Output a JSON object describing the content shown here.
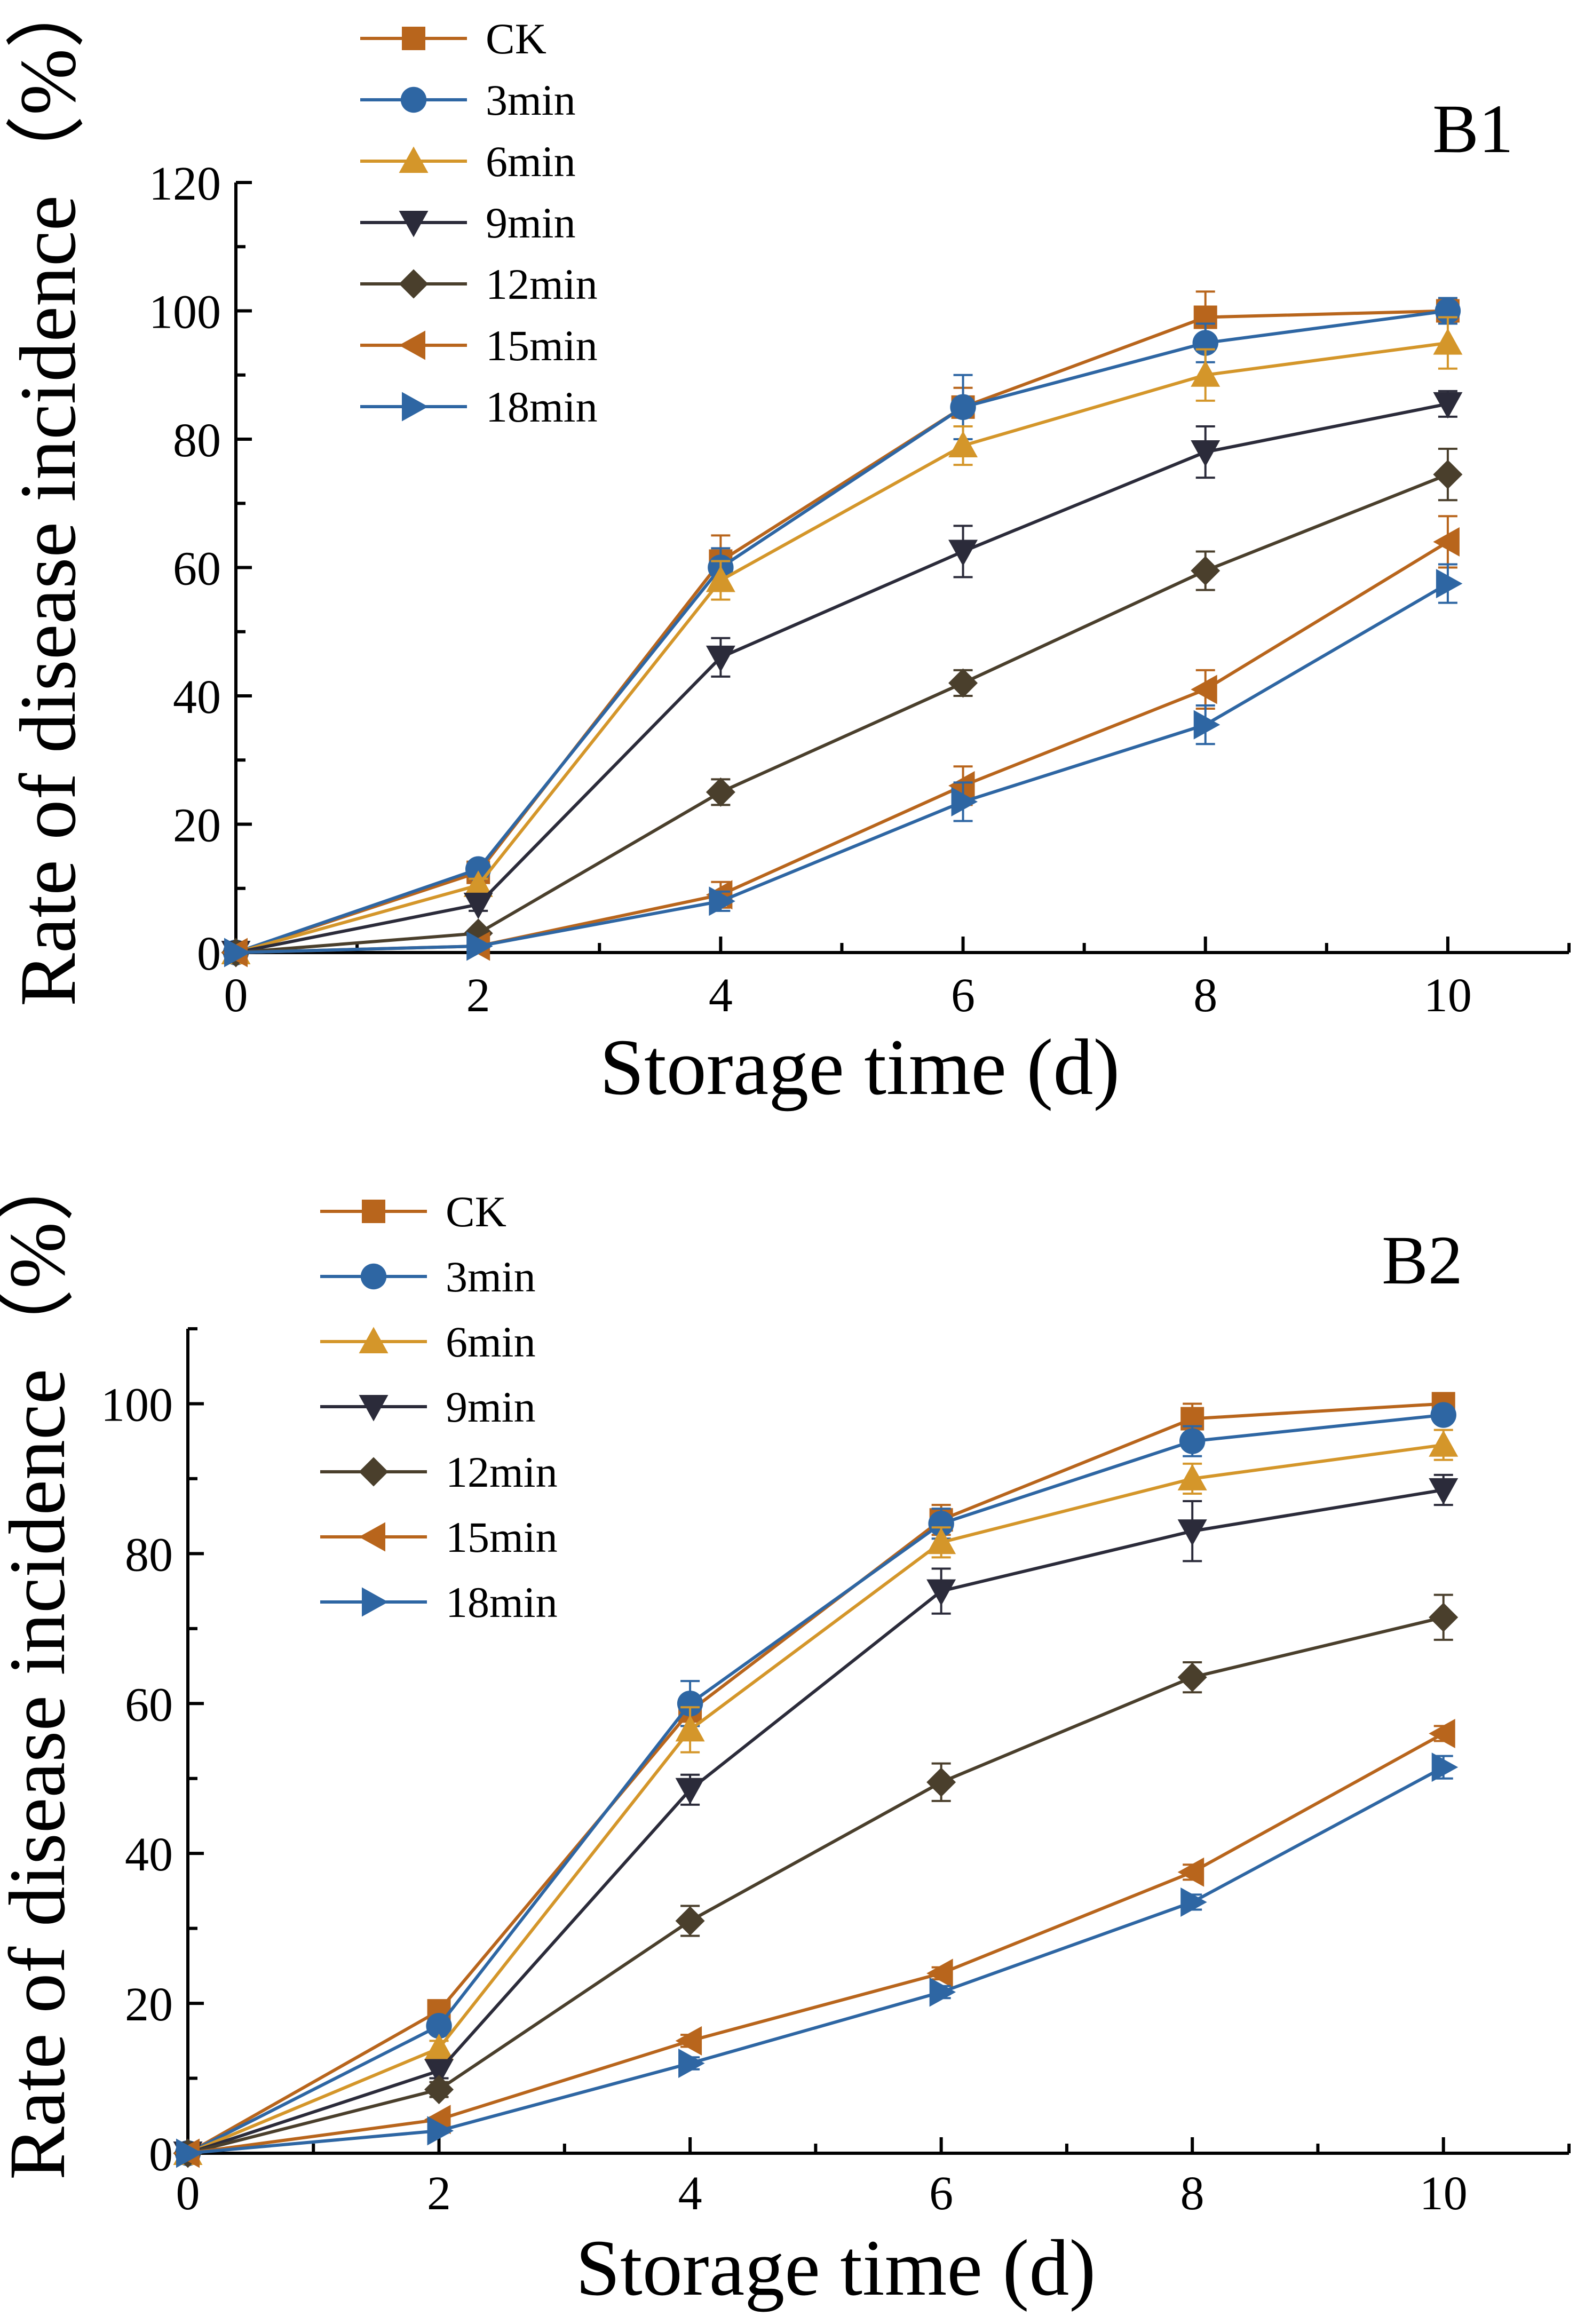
{
  "colors": {
    "CK": "#B8651C",
    "3min": "#2E66A3",
    "6min": "#D4962A",
    "9min": "#2B2B3A",
    "12min": "#4A3F2C",
    "15min": "#B8651C",
    "18min": "#2E66A3"
  },
  "chart_data": [
    {
      "type": "line",
      "panel_label": "B1",
      "xlabel": "Storage time (d)",
      "ylabel": "Rate of disease incidence",
      "ylabel_unit": "（%）",
      "x": [
        0,
        2,
        4,
        6,
        8,
        10
      ],
      "xlim": [
        0,
        11
      ],
      "ylim": [
        0,
        120
      ],
      "xticks": [
        0,
        2,
        4,
        6,
        8,
        10
      ],
      "yticks": [
        0,
        20,
        40,
        60,
        80,
        100,
        120
      ],
      "xtick_labels": [
        "0",
        "2",
        "4",
        "6",
        "8",
        "10"
      ],
      "ytick_labels": [
        "0",
        "20",
        "40",
        "60",
        "80",
        "100",
        "120"
      ],
      "legend_position": "top-left",
      "series": [
        {
          "name": "CK",
          "marker": "square",
          "values": [
            0,
            12.5,
            61,
            85,
            99,
            100
          ],
          "errors": [
            0,
            1,
            4,
            3,
            4,
            1
          ]
        },
        {
          "name": "3min",
          "marker": "circle",
          "values": [
            0,
            13,
            60,
            85,
            95,
            100
          ],
          "errors": [
            0,
            1,
            3,
            5,
            3,
            2
          ]
        },
        {
          "name": "6min",
          "marker": "triangle-up",
          "values": [
            0,
            10.5,
            58,
            79,
            90,
            95
          ],
          "errors": [
            0,
            1,
            3,
            3,
            4,
            4
          ]
        },
        {
          "name": "9min",
          "marker": "triangle-down",
          "values": [
            0,
            7.5,
            46,
            62.5,
            78,
            85.5
          ],
          "errors": [
            0,
            1,
            3,
            4,
            4,
            2
          ]
        },
        {
          "name": "12min",
          "marker": "diamond",
          "values": [
            0,
            3,
            25,
            42,
            59.5,
            74.5
          ],
          "errors": [
            0,
            0.5,
            2,
            2,
            3,
            4
          ]
        },
        {
          "name": "15min",
          "marker": "triangle-left",
          "values": [
            0,
            1,
            9,
            26,
            41,
            64
          ],
          "errors": [
            0,
            0.3,
            2,
            3,
            3,
            4
          ]
        },
        {
          "name": "18min",
          "marker": "triangle-right",
          "values": [
            0,
            1,
            8,
            23.5,
            35.5,
            57.5
          ],
          "errors": [
            0,
            0.3,
            1.5,
            3,
            3,
            3
          ]
        }
      ]
    },
    {
      "type": "line",
      "panel_label": "B2",
      "xlabel": "Storage time (d)",
      "ylabel": "Rate of disease incidence",
      "ylabel_unit": "（%）",
      "x": [
        0,
        2,
        4,
        6,
        8,
        10
      ],
      "xlim": [
        0,
        11
      ],
      "ylim": [
        0,
        110
      ],
      "xticks": [
        0,
        2,
        4,
        6,
        8,
        10
      ],
      "yticks": [
        0,
        20,
        40,
        60,
        80,
        100
      ],
      "xtick_labels": [
        "0",
        "2",
        "4",
        "6",
        "8",
        "10"
      ],
      "ytick_labels": [
        "0",
        "20",
        "40",
        "60",
        "80",
        "100"
      ],
      "legend_position": "top-left",
      "series": [
        {
          "name": "CK",
          "marker": "square",
          "values": [
            0,
            19,
            59,
            84.5,
            98,
            100
          ],
          "errors": [
            0,
            1,
            2,
            2,
            2,
            0.5
          ]
        },
        {
          "name": "3min",
          "marker": "circle",
          "values": [
            0,
            17,
            60,
            84,
            95,
            98.5
          ],
          "errors": [
            0,
            1,
            3,
            2,
            2,
            1
          ]
        },
        {
          "name": "6min",
          "marker": "triangle-up",
          "values": [
            0,
            14,
            56.5,
            81.5,
            90,
            94.5
          ],
          "errors": [
            0,
            1,
            3,
            2,
            2,
            2
          ]
        },
        {
          "name": "9min",
          "marker": "triangle-down",
          "values": [
            0,
            11,
            48.5,
            75,
            83,
            88.5
          ],
          "errors": [
            0,
            1,
            2,
            3,
            4,
            2
          ]
        },
        {
          "name": "12min",
          "marker": "diamond",
          "values": [
            0,
            8.5,
            31,
            49.5,
            63.5,
            71.5
          ],
          "errors": [
            0,
            1,
            2,
            2.5,
            2,
            3
          ]
        },
        {
          "name": "15min",
          "marker": "triangle-left",
          "values": [
            0,
            4.5,
            15,
            24,
            37.5,
            56
          ],
          "errors": [
            0,
            0.3,
            0.8,
            0.8,
            1,
            1
          ]
        },
        {
          "name": "18min",
          "marker": "triangle-right",
          "values": [
            0,
            3,
            12,
            21.5,
            33.5,
            51.5
          ],
          "errors": [
            0,
            0.3,
            0.8,
            0.8,
            1,
            1.5
          ]
        }
      ]
    }
  ]
}
